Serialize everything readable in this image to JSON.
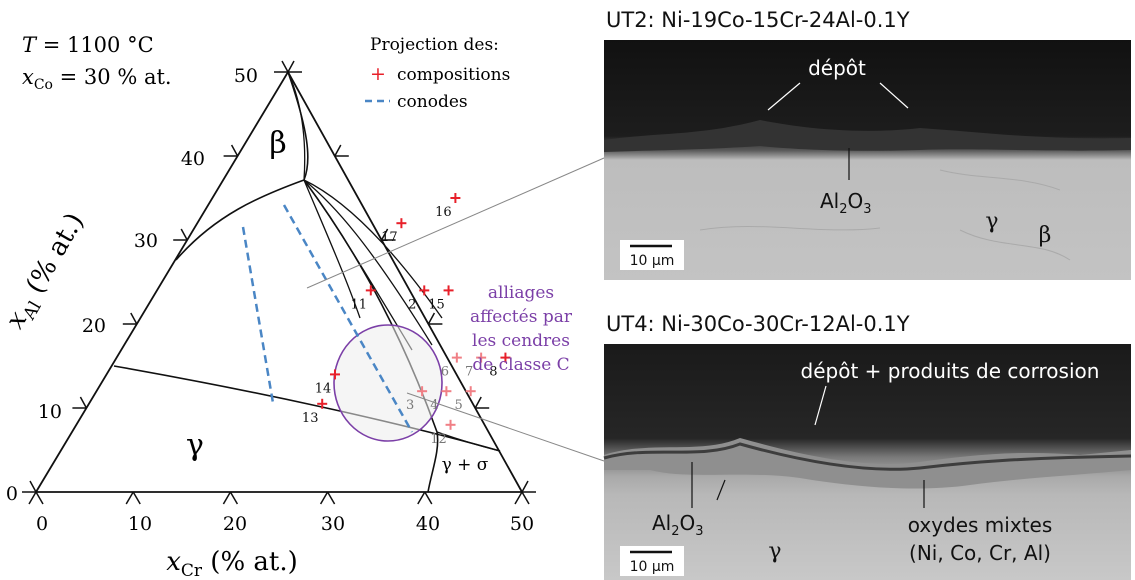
{
  "conditions": {
    "temperature_symbol": "T",
    "temperature": " = 1100 °C",
    "composition_symbol": "x",
    "composition_subscript": "Co",
    "composition_value": " = 30 % at."
  },
  "legend": {
    "title": "Projection des:",
    "items": [
      {
        "symbol": "+",
        "label": "compositions",
        "color": "#e8202a"
      },
      {
        "symbol": "– –",
        "label": "conodes",
        "color": "#4a86c5"
      }
    ]
  },
  "axes": {
    "x_symbol": "x",
    "x_subscript": "Cr",
    "x_unit": " (% at.)",
    "y_symbol": "x",
    "y_subscript": "Al",
    "y_unit": " (% at.)",
    "x_ticks": [
      "0",
      "10",
      "20",
      "30",
      "40",
      "50"
    ],
    "y_ticks": [
      "0",
      "10",
      "20",
      "30",
      "40",
      "50"
    ]
  },
  "phases": {
    "beta": "β",
    "gamma": "γ",
    "gamma_sigma": "γ + σ"
  },
  "compositions": [
    {
      "id": "2",
      "cr": 27.5,
      "al": 24.0,
      "faded": false
    },
    {
      "id": "3",
      "cr": 33.5,
      "al": 12.0,
      "faded": true
    },
    {
      "id": "4",
      "cr": 36.0,
      "al": 12.0,
      "faded": true
    },
    {
      "id": "5",
      "cr": 38.5,
      "al": 12.0,
      "faded": true
    },
    {
      "id": "6",
      "cr": 35.0,
      "al": 16.0,
      "faded": true
    },
    {
      "id": "7",
      "cr": 37.5,
      "al": 16.0,
      "faded": true
    },
    {
      "id": "8",
      "cr": 40.0,
      "al": 16.0,
      "faded": false
    },
    {
      "id": "11",
      "cr": 22.0,
      "al": 24.0,
      "faded": false
    },
    {
      "id": "12",
      "cr": 38.5,
      "al": 8.0,
      "faded": true
    },
    {
      "id": "13",
      "cr": 24.0,
      "al": 10.5,
      "faded": false
    },
    {
      "id": "14",
      "cr": 23.5,
      "al": 14.0,
      "faded": false
    },
    {
      "id": "15",
      "cr": 30.0,
      "al": 24.0,
      "faded": false
    },
    {
      "id": "16",
      "cr": 25.0,
      "al": 35.0,
      "faded": false
    },
    {
      "id": "17",
      "cr": 21.0,
      "al": 32.0,
      "faded": false
    }
  ],
  "highlight_note": {
    "lines": [
      "alliages",
      "affectés par",
      "les cendres",
      "de classe C"
    ],
    "color": "#7b3fa7"
  },
  "micrographs": [
    {
      "title": "UT2: Ni-19Co-15Cr-24Al-0.1Y",
      "labels": {
        "deposit": "dépôt",
        "oxide_main": "Al",
        "oxide_sub": "2",
        "oxide_tail": "O",
        "oxide_sub2": "3",
        "gamma": "γ",
        "beta": "β"
      },
      "scale_bar": "10 µm"
    },
    {
      "title": "UT4: Ni-30Co-30Cr-12Al-0.1Y",
      "labels": {
        "deposit": "dépôt + produits de corrosion",
        "oxide_main": "Al",
        "oxide_sub": "2",
        "oxide_tail": "O",
        "oxide_sub2": "3",
        "mixed_oxides_line1": "oxydes mixtes",
        "mixed_oxides_line2": "(Ni, Co, Cr, Al)",
        "gamma": "γ"
      },
      "scale_bar": "10 µm"
    }
  ]
}
